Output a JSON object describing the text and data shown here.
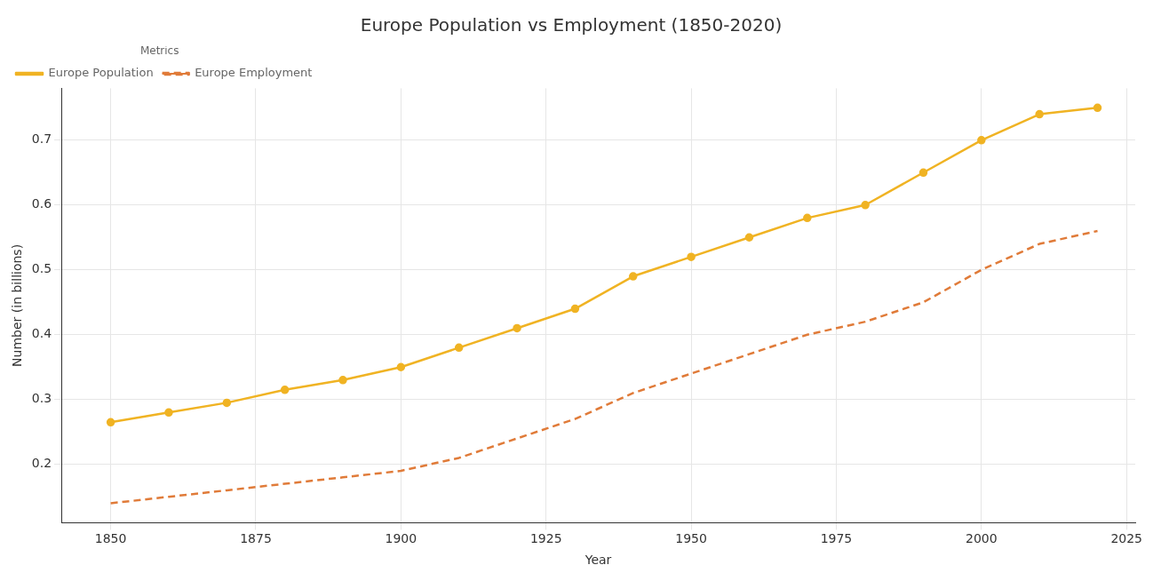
{
  "chart_data": {
    "type": "line",
    "title": "Europe Population vs Employment (1850-2020)",
    "xlabel": "Year",
    "ylabel": "Number (in billions)",
    "legend_title": "Metrics",
    "legend": "top left",
    "grid": true,
    "x": [
      1850,
      1860,
      1870,
      1880,
      1890,
      1900,
      1910,
      1920,
      1930,
      1940,
      1950,
      1960,
      1970,
      1980,
      1990,
      2000,
      2010,
      2020
    ],
    "xlim": [
      1841.5,
      2026.5
    ],
    "xticks": [
      1850,
      1875,
      1900,
      1925,
      1950,
      1975,
      2000,
      2025
    ],
    "ylim": [
      0.11,
      0.78
    ],
    "yticks": [
      0.2,
      0.3,
      0.4,
      0.5,
      0.6,
      0.7
    ],
    "series": [
      {
        "name": "Europe Population",
        "color": "#f0b323",
        "marker": "circle",
        "line_style": "solid",
        "values": [
          0.265,
          0.28,
          0.295,
          0.315,
          0.33,
          0.35,
          0.38,
          0.41,
          0.44,
          0.49,
          0.52,
          0.55,
          0.58,
          0.6,
          0.65,
          0.7,
          0.74,
          0.75
        ]
      },
      {
        "name": "Europe Employment",
        "color": "#e07b39",
        "marker": "none",
        "line_style": "dashed",
        "values": [
          0.14,
          0.15,
          0.16,
          0.17,
          0.18,
          0.19,
          0.21,
          0.24,
          0.27,
          0.31,
          0.34,
          0.37,
          0.4,
          0.42,
          0.45,
          0.5,
          0.54,
          0.56
        ]
      }
    ]
  }
}
